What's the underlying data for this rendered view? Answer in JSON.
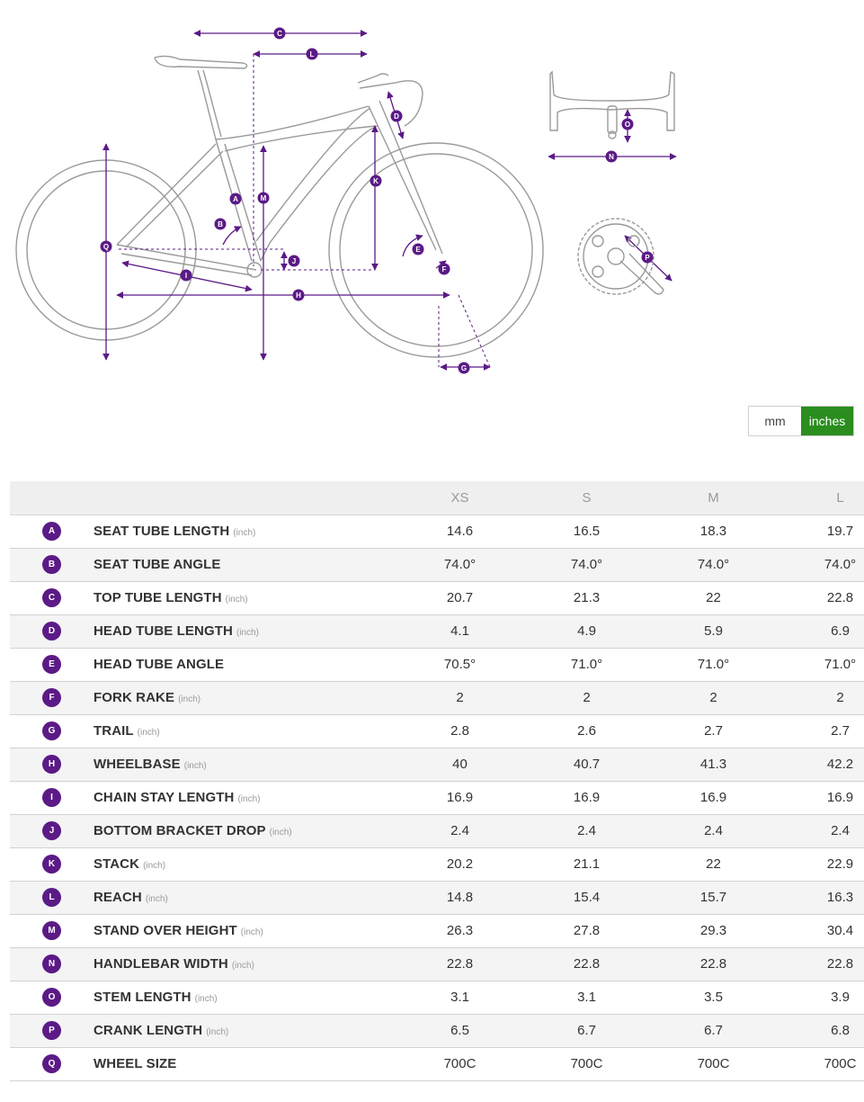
{
  "colors": {
    "accent": "#5b1a86",
    "active_toggle": "#2a8d1e",
    "frame": "#9a9a9a"
  },
  "diagram": {
    "bike_labels": [
      "A",
      "B",
      "C",
      "D",
      "E",
      "F",
      "G",
      "H",
      "I",
      "J",
      "K",
      "L",
      "M",
      "Q"
    ],
    "handlebar_labels": [
      "O",
      "N"
    ],
    "crank_labels": [
      "P"
    ]
  },
  "unit_toggle": {
    "mm_label": "mm",
    "inches_label": "inches",
    "selected": "inches"
  },
  "table": {
    "sizes": [
      "XS",
      "S",
      "M",
      "L"
    ],
    "rows": [
      {
        "letter": "A",
        "name": "SEAT TUBE LENGTH",
        "unit": "(inch)",
        "values": [
          "14.6",
          "16.5",
          "18.3",
          "19.7"
        ]
      },
      {
        "letter": "B",
        "name": "SEAT TUBE ANGLE",
        "unit": "",
        "values": [
          "74.0°",
          "74.0°",
          "74.0°",
          "74.0°"
        ]
      },
      {
        "letter": "C",
        "name": "TOP TUBE LENGTH",
        "unit": "(inch)",
        "values": [
          "20.7",
          "21.3",
          "22",
          "22.8"
        ]
      },
      {
        "letter": "D",
        "name": "HEAD TUBE LENGTH",
        "unit": "(inch)",
        "values": [
          "4.1",
          "4.9",
          "5.9",
          "6.9"
        ]
      },
      {
        "letter": "E",
        "name": "HEAD TUBE ANGLE",
        "unit": "",
        "values": [
          "70.5°",
          "71.0°",
          "71.0°",
          "71.0°"
        ]
      },
      {
        "letter": "F",
        "name": "FORK RAKE",
        "unit": "(inch)",
        "values": [
          "2",
          "2",
          "2",
          "2"
        ]
      },
      {
        "letter": "G",
        "name": "TRAIL",
        "unit": "(inch)",
        "values": [
          "2.8",
          "2.6",
          "2.7",
          "2.7"
        ]
      },
      {
        "letter": "H",
        "name": "WHEELBASE",
        "unit": "(inch)",
        "values": [
          "40",
          "40.7",
          "41.3",
          "42.2"
        ]
      },
      {
        "letter": "I",
        "name": "CHAIN STAY LENGTH",
        "unit": "(inch)",
        "values": [
          "16.9",
          "16.9",
          "16.9",
          "16.9"
        ]
      },
      {
        "letter": "J",
        "name": "BOTTOM BRACKET DROP",
        "unit": "(inch)",
        "values": [
          "2.4",
          "2.4",
          "2.4",
          "2.4"
        ]
      },
      {
        "letter": "K",
        "name": "STACK",
        "unit": "(inch)",
        "values": [
          "20.2",
          "21.1",
          "22",
          "22.9"
        ]
      },
      {
        "letter": "L",
        "name": "REACH",
        "unit": "(inch)",
        "values": [
          "14.8",
          "15.4",
          "15.7",
          "16.3"
        ]
      },
      {
        "letter": "M",
        "name": "STAND OVER HEIGHT",
        "unit": "(inch)",
        "values": [
          "26.3",
          "27.8",
          "29.3",
          "30.4"
        ]
      },
      {
        "letter": "N",
        "name": "HANDLEBAR WIDTH",
        "unit": "(inch)",
        "values": [
          "22.8",
          "22.8",
          "22.8",
          "22.8"
        ]
      },
      {
        "letter": "O",
        "name": "STEM LENGTH",
        "unit": "(inch)",
        "values": [
          "3.1",
          "3.1",
          "3.5",
          "3.9"
        ]
      },
      {
        "letter": "P",
        "name": "CRANK LENGTH",
        "unit": "(inch)",
        "values": [
          "6.5",
          "6.7",
          "6.7",
          "6.8"
        ]
      },
      {
        "letter": "Q",
        "name": "WHEEL SIZE",
        "unit": "",
        "values": [
          "700C",
          "700C",
          "700C",
          "700C"
        ]
      }
    ]
  }
}
